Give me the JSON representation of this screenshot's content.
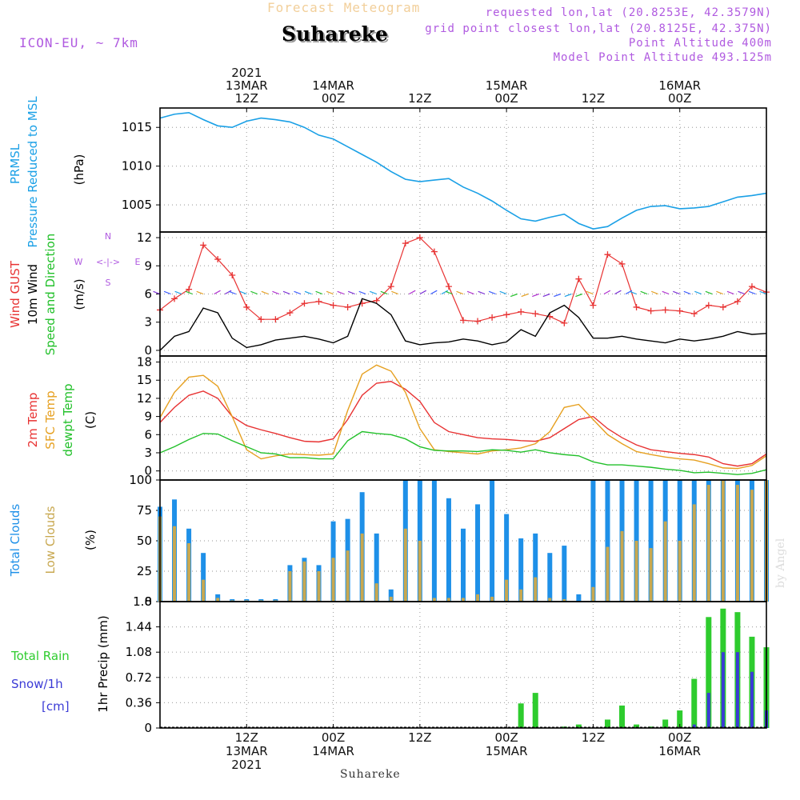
{
  "header": {
    "faint_title": "Forecast Meteogram",
    "location": "Suhareke",
    "model": "ICON-EU, ~ 7km",
    "requested": "requested lon,lat (20.8253E, 42.3579N)",
    "grid_point": "grid point closest lon,lat (20.8125E, 42.375N)",
    "point_altitude": "Point Altitude 400m",
    "model_altitude": "Model Point Altitude 493.125m",
    "footer_location": "Suhareke",
    "watermark": "by Angel"
  },
  "time_axis": {
    "top_labels": [
      {
        "t": 12,
        "lines": [
          "2021",
          "13MAR",
          "12Z"
        ]
      },
      {
        "t": 24,
        "lines": [
          "14MAR",
          "00Z"
        ]
      },
      {
        "t": 36,
        "lines": [
          "12Z"
        ]
      },
      {
        "t": 48,
        "lines": [
          "15MAR",
          "00Z"
        ]
      },
      {
        "t": 60,
        "lines": [
          "12Z"
        ]
      },
      {
        "t": 72,
        "lines": [
          "16MAR",
          "00Z"
        ]
      }
    ],
    "bottom_labels": [
      {
        "t": 12,
        "lines": [
          "12Z",
          "13MAR",
          "2021"
        ]
      },
      {
        "t": 24,
        "lines": [
          "00Z",
          "14MAR"
        ]
      },
      {
        "t": 36,
        "lines": [
          "12Z"
        ]
      },
      {
        "t": 48,
        "lines": [
          "00Z",
          "15MAR"
        ]
      },
      {
        "t": 60,
        "lines": [
          "12Z"
        ]
      },
      {
        "t": 72,
        "lines": [
          "00Z",
          "16MAR"
        ]
      }
    ]
  },
  "colors": {
    "pressure": "#1aa0e6",
    "gust": "#e83232",
    "wind": "#000000",
    "temp": "#e83232",
    "sfc": "#e6a020",
    "dew": "#22c02a",
    "total_clouds": "#1e90e8",
    "low_clouds": "#c8a850",
    "rain": "#2ecc2e",
    "snow": "#3b3bd6",
    "label_purple": "#b05ae0"
  },
  "panel_labels": {
    "pressure": {
      "left1": "PRMSL",
      "left2": "Pressure Reduced to MSL",
      "unit": "(hPa)"
    },
    "wind": {
      "left1": "Wind GUST",
      "left2": "10m Wind",
      "left3": "Speed and Direction",
      "unit": "(m/s)",
      "compass_n": "N",
      "compass_s": "S",
      "compass_w": "W",
      "compass_e": "E",
      "compass_mid": "<-|->"
    },
    "temp": {
      "left1": "2m Temp",
      "left2": "SFC Temp",
      "left3": "dewpt Temp",
      "unit": "(C)"
    },
    "clouds": {
      "left1": "Total Clouds",
      "left2": "Low Clouds",
      "unit": "(%)"
    },
    "precip": {
      "left1": "Total  Rain",
      "left2": "Snow/1h",
      "left3": "[cm]",
      "unit": "1hr Precip (mm)"
    }
  },
  "chart_data": [
    {
      "type": "line",
      "id": "pressure",
      "ylabel": "(hPa)",
      "ylim": [
        1001.5,
        1017.5
      ],
      "yticks": [
        1005,
        1010,
        1015
      ],
      "x": [
        0,
        2,
        4,
        6,
        8,
        10,
        12,
        14,
        16,
        18,
        20,
        22,
        24,
        26,
        28,
        30,
        32,
        34,
        36,
        38,
        40,
        42,
        44,
        46,
        48,
        50,
        52,
        54,
        56,
        58,
        60,
        62,
        64,
        66,
        68,
        70,
        72,
        74,
        76,
        78,
        80,
        82,
        84
      ],
      "series": [
        {
          "values": [
            1016.2,
            1016.7,
            1016.9,
            1016.0,
            1015.2,
            1015.0,
            1015.8,
            1016.2,
            1016.0,
            1015.7,
            1015.0,
            1014.0,
            1013.5,
            1012.5,
            1011.5,
            1010.5,
            1009.3,
            1008.3,
            1008.0,
            1008.2,
            1008.4,
            1007.3,
            1006.5,
            1005.5,
            1004.3,
            1003.2,
            1002.9,
            1003.4,
            1003.8,
            1002.6,
            1001.9,
            1002.2,
            1003.3,
            1004.3,
            1004.8,
            1004.9,
            1004.5,
            1004.6,
            1004.8,
            1005.4,
            1006.0,
            1006.2,
            1006.5
          ]
        }
      ]
    },
    {
      "type": "line",
      "id": "wind",
      "ylabel": "(m/s)",
      "ylim": [
        -0.6,
        12.6
      ],
      "yticks": [
        0,
        3,
        6,
        9,
        12
      ],
      "x": [
        0,
        2,
        4,
        6,
        8,
        10,
        12,
        14,
        16,
        18,
        20,
        22,
        24,
        26,
        28,
        30,
        32,
        34,
        36,
        38,
        40,
        42,
        44,
        46,
        48,
        50,
        52,
        54,
        56,
        58,
        60,
        62,
        64,
        66,
        68,
        70,
        72,
        74,
        76,
        78,
        80,
        82,
        84
      ],
      "series": [
        {
          "values": [
            4.3,
            5.5,
            6.5,
            11.2,
            9.7,
            8.0,
            4.6,
            3.3,
            3.3,
            4.0,
            5.0,
            5.2,
            4.8,
            4.6,
            5.0,
            5.3,
            6.8,
            11.4,
            12.0,
            10.5,
            6.8,
            3.2,
            3.1,
            3.5,
            3.8,
            4.1,
            3.9,
            3.6,
            2.9,
            7.6,
            4.8,
            10.2,
            9.2,
            4.6,
            4.2,
            4.3,
            4.2,
            3.9,
            4.8,
            4.6,
            5.2,
            6.8,
            6.2
          ]
        },
        {
          "values": [
            0.0,
            1.5,
            2.0,
            4.5,
            4.0,
            1.3,
            0.3,
            0.6,
            1.1,
            1.3,
            1.5,
            1.2,
            0.8,
            1.5,
            5.5,
            5.0,
            3.8,
            1.0,
            0.6,
            0.8,
            0.9,
            1.2,
            1.0,
            0.6,
            0.9,
            2.2,
            1.5,
            4.0,
            4.8,
            3.5,
            1.3,
            1.3,
            1.5,
            1.2,
            1.0,
            0.8,
            1.2,
            1.0,
            1.2,
            1.5,
            2.0,
            1.7,
            1.8
          ]
        }
      ],
      "direction_arrows_note": "wind direction arrows along 6 m/s level"
    },
    {
      "type": "line",
      "id": "temperature",
      "ylabel": "(C)",
      "ylim": [
        -1.5,
        19.0
      ],
      "yticks": [
        0,
        3,
        6,
        9,
        12,
        15,
        18
      ],
      "x": [
        0,
        2,
        4,
        6,
        8,
        10,
        12,
        14,
        16,
        18,
        20,
        22,
        24,
        26,
        28,
        30,
        32,
        34,
        36,
        38,
        40,
        42,
        44,
        46,
        48,
        50,
        52,
        54,
        56,
        58,
        60,
        62,
        64,
        66,
        68,
        70,
        72,
        74,
        76,
        78,
        80,
        82,
        84
      ],
      "series": [
        {
          "values": [
            8.0,
            10.5,
            12.5,
            13.2,
            12.0,
            9.0,
            7.5,
            6.8,
            6.2,
            5.5,
            4.9,
            4.8,
            5.3,
            8.5,
            12.5,
            14.5,
            14.8,
            13.5,
            11.5,
            8.0,
            6.5,
            6.0,
            5.5,
            5.3,
            5.2,
            5.0,
            4.9,
            5.5,
            7.0,
            8.5,
            9.0,
            7.0,
            5.5,
            4.3,
            3.5,
            3.2,
            2.9,
            2.7,
            2.3,
            1.2,
            0.8,
            1.2,
            2.8
          ]
        },
        {
          "values": [
            8.8,
            13.0,
            15.5,
            15.8,
            14.0,
            9.0,
            3.5,
            2.0,
            2.5,
            2.8,
            2.7,
            2.6,
            2.8,
            10.0,
            16.0,
            17.5,
            16.5,
            13.0,
            7.0,
            3.5,
            3.2,
            3.0,
            2.8,
            3.3,
            3.5,
            3.8,
            4.5,
            6.5,
            10.5,
            11.0,
            8.5,
            6.0,
            4.5,
            3.2,
            2.7,
            2.3,
            2.0,
            1.8,
            1.2,
            0.5,
            0.4,
            0.9,
            2.5
          ]
        },
        {
          "values": [
            3.0,
            4.0,
            5.2,
            6.2,
            6.1,
            5.0,
            4.0,
            3.0,
            2.8,
            2.2,
            2.2,
            2.0,
            2.0,
            5.0,
            6.5,
            6.2,
            6.0,
            5.3,
            4.0,
            3.4,
            3.3,
            3.3,
            3.2,
            3.5,
            3.4,
            3.1,
            3.5,
            3.0,
            2.7,
            2.5,
            1.5,
            1.0,
            1.0,
            0.8,
            0.6,
            0.3,
            0.1,
            -0.3,
            -0.2,
            -0.4,
            -0.6,
            -0.4,
            0.2
          ]
        }
      ]
    },
    {
      "type": "bar",
      "id": "clouds",
      "ylabel": "(%)",
      "ylim": [
        0,
        100
      ],
      "yticks": [
        0,
        25,
        50,
        75,
        100
      ],
      "x": [
        0,
        2,
        4,
        6,
        8,
        10,
        12,
        14,
        16,
        18,
        20,
        22,
        24,
        26,
        28,
        30,
        32,
        34,
        36,
        38,
        40,
        42,
        44,
        46,
        48,
        50,
        52,
        54,
        56,
        58,
        60,
        62,
        64,
        66,
        68,
        70,
        72,
        74,
        76,
        78,
        80,
        82,
        84
      ],
      "series": [
        {
          "values": [
            78,
            84,
            60,
            40,
            6,
            2,
            2,
            2,
            2,
            30,
            36,
            30,
            66,
            68,
            90,
            56,
            10,
            100,
            100,
            100,
            85,
            60,
            80,
            100,
            72,
            52,
            56,
            40,
            46,
            6,
            100,
            100,
            100,
            100,
            100,
            100,
            100,
            100,
            100,
            100,
            100,
            100,
            100
          ]
        },
        {
          "values": [
            70,
            62,
            48,
            18,
            3,
            1,
            1,
            1,
            1,
            25,
            33,
            25,
            36,
            42,
            56,
            15,
            4,
            60,
            50,
            3,
            3,
            3,
            6,
            4,
            18,
            10,
            20,
            3,
            2,
            0,
            12,
            45,
            58,
            50,
            44,
            66,
            50,
            80,
            96,
            100,
            96,
            92,
            100
          ]
        }
      ]
    },
    {
      "type": "bar",
      "id": "precipitation",
      "ylabel": "1hr Precip (mm)",
      "ylim": [
        0,
        1.8
      ],
      "yticks": [
        0,
        0.36,
        0.72,
        1.08,
        1.44,
        1.8
      ],
      "x": [
        48,
        50,
        52,
        54,
        56,
        58,
        60,
        62,
        64,
        66,
        68,
        70,
        72,
        74,
        76,
        78,
        80,
        82,
        84
      ],
      "series": [
        {
          "values": [
            0.0,
            0.35,
            0.5,
            0.0,
            0.02,
            0.05,
            0.0,
            0.12,
            0.32,
            0.05,
            0.02,
            0.12,
            0.25,
            0.7,
            1.58,
            1.7,
            1.65,
            1.3,
            1.15
          ]
        },
        {
          "values": [
            0.0,
            0.0,
            0.0,
            0.0,
            0.0,
            0.0,
            0.0,
            0.0,
            0.0,
            0.0,
            0.0,
            0.0,
            0.0,
            0.05,
            0.5,
            1.08,
            1.08,
            0.8,
            0.25
          ]
        }
      ]
    }
  ]
}
